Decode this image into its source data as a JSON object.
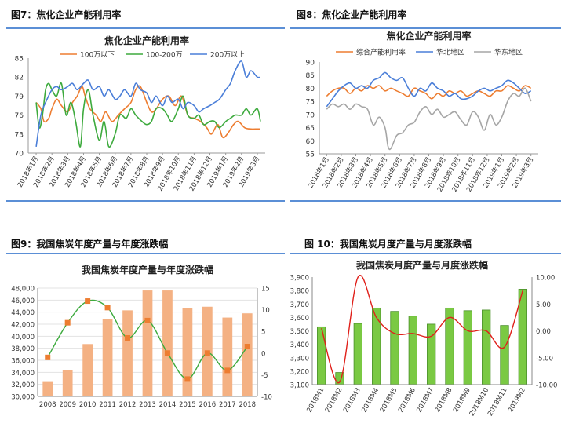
{
  "panels": [
    {
      "label": "图7：焦化企业产能利用率"
    },
    {
      "label": "图8：焦化企业产能利用率"
    },
    {
      "label": "图9：我国焦炭年度产量与年度涨跌幅"
    },
    {
      "label": "图 10：我国焦炭月度产量与月度涨跌幅"
    }
  ],
  "colors": {
    "blue": "#4a7ed8",
    "orange": "#f4b183",
    "orange_dark": "#ed7d31",
    "green": "#3daa3d",
    "gray": "#a6a6a6",
    "bar_green": "#7ac943",
    "red": "#e0201a"
  },
  "chart_data": [
    {
      "type": "line",
      "title": "焦化企业产能利用率",
      "legend_position": "top",
      "ylim": [
        70,
        85
      ],
      "yticks": [
        70,
        73,
        76,
        79,
        82,
        85
      ],
      "x_ticks": [
        "2018年1月",
        "2018年2月",
        "2018年3月",
        "2018年4月",
        "2018年5月",
        "2018年6月",
        "2018年7月",
        "2018年8月",
        "2018年9月",
        "2018年10月",
        "2018年11月",
        "2018年12月",
        "2019年1月",
        "2019年2月",
        "2019年3月"
      ],
      "series": [
        {
          "name": "100万以下",
          "color": "#ed7d31",
          "x": [
            0,
            0.3,
            0.5,
            0.8,
            1,
            1.3,
            1.6,
            2,
            2.3,
            2.6,
            2.9,
            3.1,
            3.4,
            3.8,
            4.1,
            4.4,
            4.8,
            5.2,
            5.6,
            6,
            6.3,
            6.6,
            7,
            7.3,
            7.6,
            8,
            8.4,
            8.8,
            9.2,
            9.6,
            10,
            10.4,
            10.8,
            11.1,
            11.5,
            11.8,
            12.1,
            12.5,
            12.8,
            13.2,
            13.6,
            14,
            14.2
          ],
          "values": [
            78,
            77,
            75,
            75.5,
            77,
            78.5,
            77.5,
            76.5,
            78,
            79,
            80.5,
            79,
            77,
            76,
            75,
            76.5,
            75,
            76,
            77,
            78,
            80,
            80.5,
            78,
            76.5,
            77,
            78.5,
            79,
            77.5,
            79,
            76,
            75.5,
            75,
            74,
            73,
            74.5,
            72.5,
            73,
            74.5,
            75,
            74,
            73.8,
            73.8,
            73.8
          ]
        },
        {
          "name": "100-200万",
          "color": "#3daa3d",
          "x": [
            0,
            0.2,
            0.4,
            0.6,
            0.8,
            1,
            1.3,
            1.6,
            1.9,
            2.2,
            2.5,
            2.8,
            3,
            3.3,
            3.6,
            4,
            4.3,
            4.6,
            5,
            5.3,
            5.7,
            6,
            6.3,
            6.7,
            7,
            7.3,
            7.6,
            8,
            8.3,
            8.6,
            9,
            9.3,
            9.6,
            10,
            10.3,
            10.6,
            11,
            11.3,
            11.6,
            12,
            12.3,
            12.6,
            13,
            13.3,
            13.6,
            14,
            14.2
          ],
          "values": [
            78,
            74,
            76,
            80,
            81,
            80,
            79,
            81,
            76,
            78,
            75,
            71,
            77,
            80,
            76,
            72,
            75,
            71,
            73,
            76,
            75.5,
            77,
            76,
            75,
            74.5,
            75,
            77,
            77,
            76,
            75,
            77,
            79,
            76,
            75.5,
            76,
            74.5,
            75,
            75,
            74,
            75,
            75.5,
            76,
            76,
            77,
            76,
            77,
            75
          ]
        },
        {
          "name": "200万以上",
          "color": "#4a7ed8",
          "x": [
            0,
            0.3,
            0.6,
            1,
            1.3,
            1.6,
            2,
            2.3,
            2.6,
            3,
            3.3,
            3.6,
            4,
            4.3,
            4.6,
            5,
            5.3,
            5.6,
            6,
            6.3,
            6.6,
            7,
            7.3,
            7.6,
            8,
            8.3,
            8.6,
            9,
            9.3,
            9.6,
            10,
            10.3,
            10.6,
            11,
            11.3,
            11.6,
            12,
            12.3,
            12.6,
            13,
            13.3,
            13.6,
            14,
            14.2
          ],
          "values": [
            71,
            76,
            78,
            80,
            80.5,
            80,
            80.5,
            81,
            80,
            81,
            81.5,
            80,
            80.5,
            79,
            80,
            78.5,
            79,
            80,
            79,
            81,
            80,
            79.5,
            78,
            79,
            77.5,
            79,
            78,
            78.5,
            77,
            78,
            77.5,
            76.5,
            77,
            77.5,
            78,
            78.5,
            80,
            81,
            83,
            84.5,
            82,
            83,
            82,
            82
          ]
        }
      ]
    },
    {
      "type": "line",
      "title": "焦化企业产能利用率",
      "legend_position": "top",
      "ylim": [
        55,
        90
      ],
      "yticks": [
        55,
        60,
        65,
        70,
        75,
        80,
        85,
        90
      ],
      "x_ticks": [
        "2018年1月",
        "2018年2月",
        "2018年3月",
        "2018年4月",
        "2018年5月",
        "2018年6月",
        "2018年7月",
        "2018年8月",
        "2018年9月",
        "2018年10月",
        "2018年11月",
        "2018年12月",
        "2019年1月",
        "2019年2月",
        "2019年3月"
      ],
      "series": [
        {
          "name": "综合产能利用率",
          "color": "#ed7d31",
          "x": [
            0,
            0.4,
            0.8,
            1.2,
            1.6,
            2,
            2.4,
            2.8,
            3.2,
            3.6,
            4,
            4.4,
            4.8,
            5.2,
            5.6,
            6,
            6.4,
            6.8,
            7.2,
            7.6,
            8,
            8.4,
            8.8,
            9.2,
            9.6,
            10,
            10.4,
            10.8,
            11.2,
            11.6,
            12,
            12.4,
            12.8,
            13.2,
            13.6,
            14
          ],
          "values": [
            77,
            79,
            80,
            80,
            78,
            80,
            79,
            81,
            80,
            81,
            79,
            80,
            79,
            78,
            77,
            80,
            79,
            78,
            76,
            78,
            77,
            79,
            78,
            79,
            77,
            78,
            79,
            78,
            77,
            79,
            79,
            81,
            80,
            79,
            81,
            80
          ]
        },
        {
          "name": "华北地区",
          "color": "#4a7ed8",
          "x": [
            0,
            0.4,
            0.8,
            1.2,
            1.6,
            2,
            2.4,
            2.8,
            3.2,
            3.6,
            4,
            4.4,
            4.8,
            5.2,
            5.6,
            6,
            6.4,
            6.8,
            7.2,
            7.6,
            8,
            8.4,
            8.8,
            9.2,
            9.6,
            10,
            10.4,
            10.8,
            11.2,
            11.6,
            12,
            12.4,
            12.8,
            13.2,
            13.6,
            14
          ],
          "values": [
            73,
            76,
            79,
            81,
            82,
            80,
            81,
            80,
            83,
            84,
            86,
            84,
            83,
            84,
            80,
            77,
            80,
            79,
            82,
            80,
            79,
            77,
            78,
            76,
            76,
            77,
            79,
            80,
            79,
            80,
            81,
            83,
            82,
            80,
            78,
            79
          ]
        },
        {
          "name": "华东地区",
          "color": "#a6a6a6",
          "x": [
            0,
            0.4,
            0.8,
            1.2,
            1.6,
            2,
            2.4,
            2.8,
            3.2,
            3.6,
            4,
            4.2,
            4.4,
            4.8,
            5.2,
            5.6,
            6,
            6.4,
            6.8,
            7.2,
            7.6,
            8,
            8.4,
            8.8,
            9.2,
            9.6,
            10,
            10.4,
            10.8,
            11.2,
            11.6,
            12,
            12.4,
            12.8,
            13.2,
            13.6,
            14
          ],
          "values": [
            72,
            74,
            73,
            74,
            72,
            74,
            73,
            72,
            66,
            69,
            65,
            58,
            57,
            62,
            63,
            66,
            67,
            71,
            73,
            70,
            72,
            69,
            70,
            71,
            68,
            66,
            71,
            69,
            64,
            70,
            66,
            69,
            75,
            78,
            77,
            80,
            75
          ]
        }
      ]
    },
    {
      "type": "bar",
      "title": "我国焦炭年度产量与年度涨跌幅",
      "categories": [
        "2008",
        "2009",
        "2010",
        "2011",
        "2012",
        "2013",
        "2014",
        "2015",
        "2016",
        "2017",
        "2018"
      ],
      "ylim_left": [
        30000,
        48000
      ],
      "yticks_left": [
        30000,
        32000,
        34000,
        36000,
        38000,
        40000,
        42000,
        44000,
        46000,
        48000
      ],
      "yticks_left_labels": [
        "30,000",
        "32,000",
        "34,000",
        "36,000",
        "38,000",
        "40,000",
        "42,000",
        "44,000",
        "46,000",
        "48,000"
      ],
      "ylim_right": [
        -10,
        15
      ],
      "yticks_right": [
        -10,
        -5,
        0,
        5,
        10,
        15
      ],
      "yticks_right_labels": [
        "-10",
        "-5",
        "0",
        "5",
        "10",
        "15"
      ],
      "series": [
        {
          "name": "产量",
          "color": "#f4b183",
          "values": [
            32400,
            34400,
            38700,
            42800,
            44300,
            47600,
            47600,
            44700,
            44900,
            43100,
            43800
          ]
        },
        {
          "name": "涨跌幅",
          "color": "#ed7d31",
          "values": [
            -1,
            7,
            12,
            10.5,
            3.5,
            7.5,
            0,
            -6,
            0,
            -4,
            1.5
          ]
        }
      ]
    },
    {
      "type": "bar",
      "title": "我国焦炭月度产量与月度涨跌幅",
      "categories": [
        "2018M1",
        "2018M2",
        "2018M3",
        "2018M4",
        "2018M5",
        "2018M6",
        "2018M7",
        "2018M8",
        "2018M9",
        "2018M10",
        "2018M11",
        "2019M2"
      ],
      "ylim_left": [
        3100,
        3900
      ],
      "yticks_left": [
        3100,
        3200,
        3300,
        3400,
        3500,
        3600,
        3700,
        3800,
        3900
      ],
      "yticks_left_labels": [
        "3,100",
        "3,200",
        "3,300",
        "3,400",
        "3,500",
        "3,600",
        "3,700",
        "3,800",
        "3,900"
      ],
      "ylim_right": [
        -10,
        10
      ],
      "yticks_right": [
        -10,
        -5,
        0,
        5,
        10
      ],
      "yticks_right_labels": [
        "-10.00",
        "-5.00",
        "0.00",
        "5.00",
        "10.00"
      ],
      "series": [
        {
          "name": "产量",
          "color": "#7ac943",
          "values": [
            3530,
            3190,
            3555,
            3670,
            3645,
            3610,
            3550,
            3670,
            3650,
            3655,
            3540,
            3810
          ]
        },
        {
          "name": "涨跌幅",
          "color": "#e0201a",
          "values": [
            0.5,
            -9.5,
            10,
            2.5,
            -0.5,
            -0.5,
            -1,
            2.5,
            0,
            0,
            -3,
            7.5
          ]
        }
      ]
    }
  ]
}
